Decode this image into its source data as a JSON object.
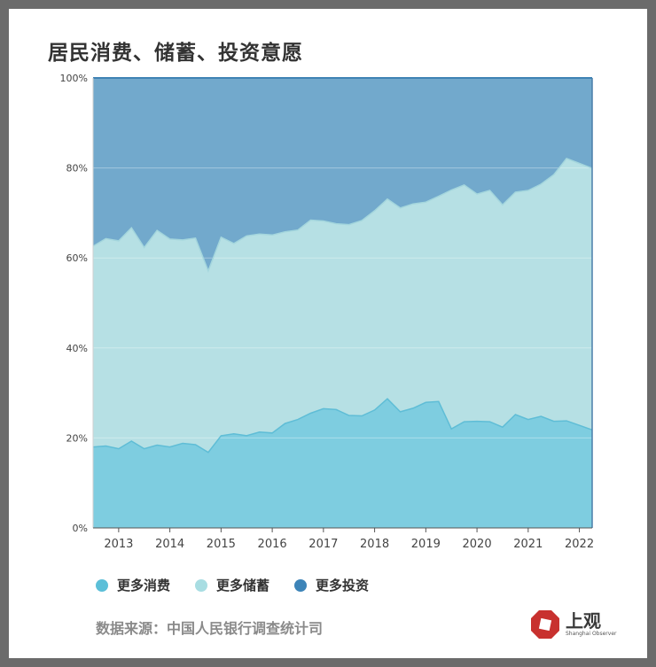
{
  "title": "居民消费、储蓄、投资意愿",
  "source": "数据来源：中国人民银行调查统计司",
  "logo": {
    "name": "上观",
    "sub": "Shanghai Observer"
  },
  "colors": {
    "consume": "#7ecde0",
    "save": "#b6e0e4",
    "invest": "#72a9cc",
    "consume_line": "#5fbdd6",
    "save_line": "#a4d6dd",
    "invest_line": "#3f82b4",
    "legend_consume": "#5cbfd8",
    "legend_save": "#a8dde2",
    "legend_invest": "#3d84b8",
    "logo_red": "#c8312f"
  },
  "chart_data": {
    "type": "area",
    "stacked": true,
    "percent": true,
    "title": "居民消费、储蓄、投资意愿",
    "ylim": [
      0,
      100
    ],
    "yticks": [
      0,
      20,
      40,
      60,
      80,
      100
    ],
    "ytick_labels": [
      "0%",
      "20%",
      "40%",
      "60%",
      "80%",
      "100%"
    ],
    "x_range": [
      2012.5,
      2022.25
    ],
    "xticks": [
      2013,
      2014,
      2015,
      2016,
      2017,
      2018,
      2019,
      2020,
      2021,
      2022
    ],
    "xtick_labels": [
      "2013",
      "2014",
      "2015",
      "2016",
      "2017",
      "2018",
      "2019",
      "2020",
      "2021",
      "2022"
    ],
    "x": [
      2012.5,
      2012.75,
      2013.0,
      2013.25,
      2013.5,
      2013.75,
      2014.0,
      2014.25,
      2014.5,
      2014.75,
      2015.0,
      2015.25,
      2015.5,
      2015.75,
      2016.0,
      2016.25,
      2016.5,
      2016.75,
      2017.0,
      2017.25,
      2017.5,
      2017.75,
      2018.0,
      2018.25,
      2018.5,
      2018.75,
      2019.0,
      2019.25,
      2019.5,
      2019.75,
      2020.0,
      2020.25,
      2020.5,
      2020.75,
      2021.0,
      2021.25,
      2021.5,
      2021.75,
      2022.0,
      2022.25
    ],
    "series": [
      {
        "name": "更多消费",
        "values": [
          18.0,
          18.2,
          17.6,
          19.3,
          17.6,
          18.4,
          18.0,
          18.8,
          18.5,
          16.8,
          20.5,
          20.9,
          20.5,
          21.3,
          21.1,
          23.2,
          24.1,
          25.5,
          26.5,
          26.3,
          25.0,
          24.9,
          26.2,
          28.7,
          25.8,
          26.6,
          27.9,
          28.1,
          22.0,
          23.6,
          23.7,
          23.6,
          22.4,
          25.2,
          24.1,
          24.8,
          23.7,
          23.8,
          22.8,
          21.8
        ]
      },
      {
        "name": "更多储蓄",
        "values": [
          44.6,
          46.1,
          46.2,
          47.4,
          44.7,
          47.7,
          46.2,
          45.2,
          45.9,
          40.3,
          44.1,
          42.3,
          44.4,
          44.0,
          44.0,
          42.6,
          42.1,
          42.9,
          41.7,
          41.3,
          42.4,
          43.4,
          44.3,
          44.4,
          45.3,
          45.4,
          44.5,
          45.6,
          53.1,
          52.6,
          50.5,
          51.4,
          49.4,
          49.4,
          50.9,
          51.6,
          54.8,
          58.3,
          58.2,
          58.1
        ]
      },
      {
        "name": "更多投资",
        "values": [
          37.4,
          35.7,
          36.2,
          33.3,
          37.7,
          33.9,
          35.8,
          36.0,
          35.6,
          42.9,
          35.4,
          36.8,
          35.1,
          34.7,
          34.9,
          34.2,
          33.8,
          31.6,
          31.8,
          32.4,
          32.6,
          31.7,
          29.5,
          26.9,
          28.9,
          28.0,
          27.6,
          26.3,
          24.9,
          23.8,
          25.8,
          25.0,
          28.2,
          25.4,
          25.0,
          23.6,
          21.5,
          17.9,
          19.0,
          20.1
        ]
      }
    ],
    "grid": true,
    "legend_position": "bottom-left"
  }
}
